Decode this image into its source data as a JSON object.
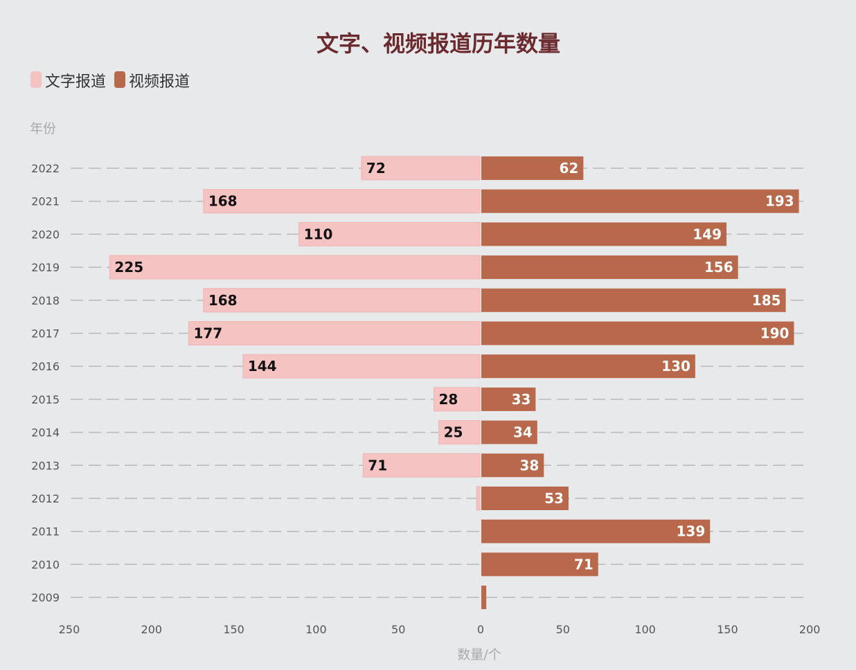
{
  "chart_data": {
    "type": "bar",
    "orientation": "horizontal-diverging",
    "title": "文字、视频报道历年数量",
    "ylabel": "年份",
    "xlabel": "数量/个",
    "categories": [
      "2022",
      "2021",
      "2020",
      "2019",
      "2018",
      "2017",
      "2016",
      "2015",
      "2014",
      "2013",
      "2012",
      "2011",
      "2010",
      "2009"
    ],
    "series": [
      {
        "name": "文字报道",
        "color": "#f5c4c2",
        "direction": "left",
        "values": [
          72,
          168,
          110,
          225,
          168,
          177,
          144,
          28,
          25,
          71,
          2,
          0,
          0,
          0
        ]
      },
      {
        "name": "视频报道",
        "color": "#b8684b",
        "direction": "right",
        "values": [
          62,
          193,
          149,
          156,
          185,
          190,
          130,
          33,
          34,
          38,
          53,
          139,
          71,
          3
        ]
      }
    ],
    "xticks": [
      "250",
      "200",
      "150",
      "100",
      "50",
      "0",
      "50",
      "100",
      "150",
      "200"
    ],
    "xlim": [
      -250,
      200
    ],
    "grid": true,
    "legend": "top-left"
  }
}
